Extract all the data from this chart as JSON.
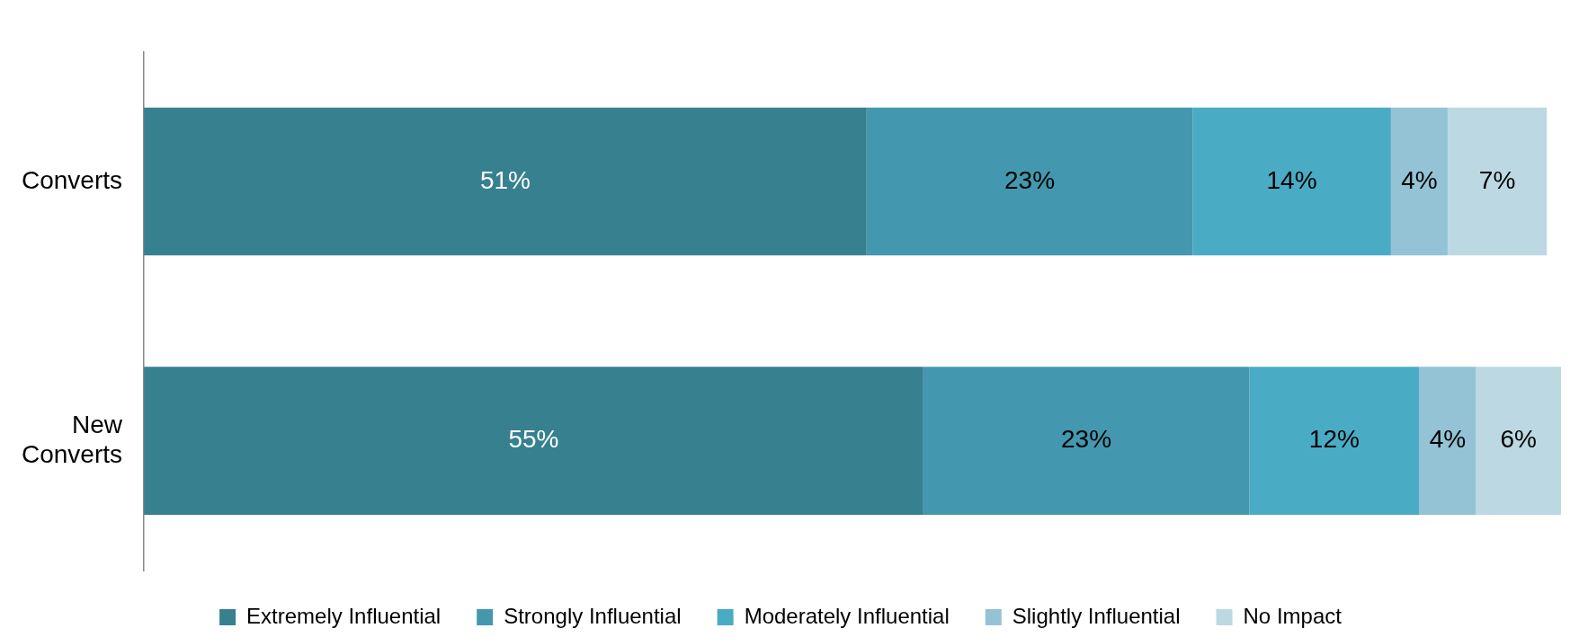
{
  "chart_data": {
    "type": "bar",
    "orientation": "horizontal",
    "stacked": true,
    "legend": "bottom",
    "categories": [
      "Converts",
      "New Converts"
    ],
    "series": [
      {
        "name": "Extremely Influential",
        "color": "#37808f",
        "values": [
          51,
          55
        ],
        "value_labels": [
          "51%",
          "55%"
        ]
      },
      {
        "name": "Strongly Influential",
        "color": "#4398af",
        "values": [
          23,
          23
        ],
        "value_labels": [
          "23%",
          "23%"
        ]
      },
      {
        "name": "Moderately Influential",
        "color": "#4aabc5",
        "values": [
          14,
          12
        ],
        "value_labels": [
          "14%",
          "12%"
        ]
      },
      {
        "name": "Slightly Influential",
        "color": "#93c3d4",
        "values": [
          4,
          4
        ],
        "value_labels": [
          "4%",
          "4%"
        ]
      },
      {
        "name": "No Impact",
        "color": "#bcd9e3",
        "values": [
          7,
          6
        ],
        "value_labels": [
          "7%",
          "6%"
        ]
      }
    ]
  }
}
